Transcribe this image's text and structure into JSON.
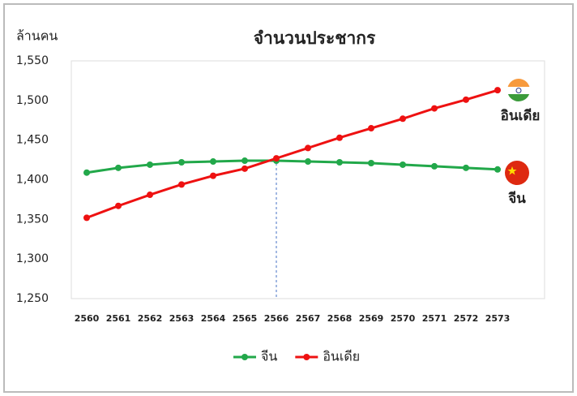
{
  "chart_data": {
    "type": "line",
    "title": "จำนวนประชากร",
    "y_label": "ล้านคน",
    "categories": [
      "2560",
      "2561",
      "2562",
      "2563",
      "2564",
      "2565",
      "2566",
      "2567",
      "2568",
      "2569",
      "2570",
      "2571",
      "2572",
      "2573"
    ],
    "series": [
      {
        "name": "จีน",
        "color": "#22a84a",
        "values": [
          1409,
          1415,
          1419,
          1422,
          1423,
          1424,
          1424,
          1423,
          1422,
          1421,
          1419,
          1417,
          1415,
          1413
        ]
      },
      {
        "name": "อินเดีย",
        "color": "#ee1111",
        "values": [
          1352,
          1367,
          1381,
          1394,
          1405,
          1414,
          1427,
          1440,
          1453,
          1465,
          1477,
          1490,
          1501,
          1513
        ]
      }
    ],
    "ylim": [
      1250,
      1550
    ],
    "yticks": [
      {
        "value": 1250,
        "label": "1,250"
      },
      {
        "value": 1300,
        "label": "1,300"
      },
      {
        "value": 1350,
        "label": "1,350"
      },
      {
        "value": 1400,
        "label": "1,400"
      },
      {
        "value": 1450,
        "label": "1,450"
      },
      {
        "value": 1500,
        "label": "1,500"
      },
      {
        "value": 1550,
        "label": "1,550"
      }
    ],
    "grid": false,
    "legend": "bottom"
  }
}
